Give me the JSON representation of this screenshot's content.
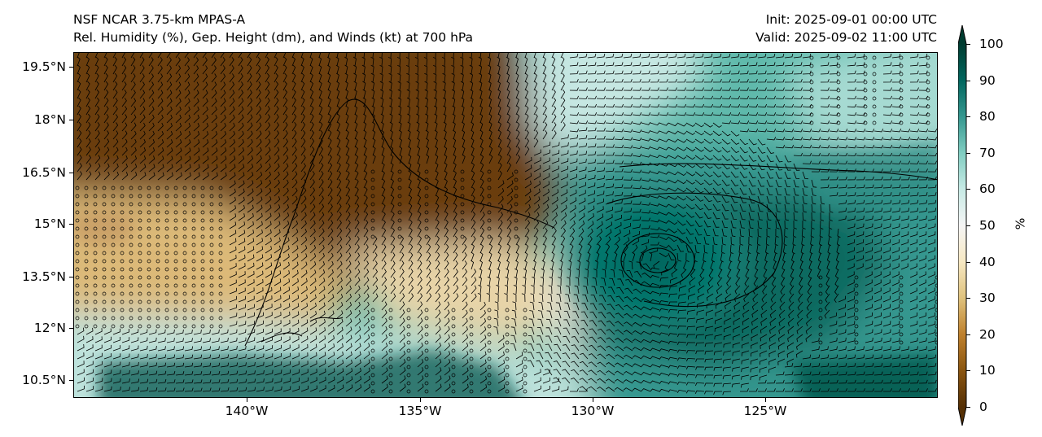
{
  "title": {
    "line1": "NSF NCAR 3.75-km MPAS-A",
    "line2": "Rel. Humidity (%), Gep. Height (dm), and Winds (kt) at 700 hPa",
    "init": "Init: 2025-09-01 00:00 UTC",
    "valid": "Valid: 2025-09-02 11:00 UTC"
  },
  "axes": {
    "lat_labels": [
      "19.5°N",
      "18°N",
      "16.5°N",
      "15°N",
      "13.5°N",
      "12°N",
      "10.5°N"
    ],
    "lon_labels": [
      "140°W",
      "135°W",
      "130°W",
      "125°W"
    ]
  },
  "colorbar": {
    "ticks": [
      "0",
      "10",
      "20",
      "30",
      "40",
      "50",
      "60",
      "70",
      "80",
      "90",
      "100"
    ],
    "unit": "%",
    "colors": [
      "#553005",
      "#8a5510",
      "#bf812d",
      "#dfc27d",
      "#f6e8c3",
      "#f5f5f5",
      "#c7eae5",
      "#80cdc1",
      "#35978f",
      "#01665e",
      "#003c30"
    ]
  }
}
